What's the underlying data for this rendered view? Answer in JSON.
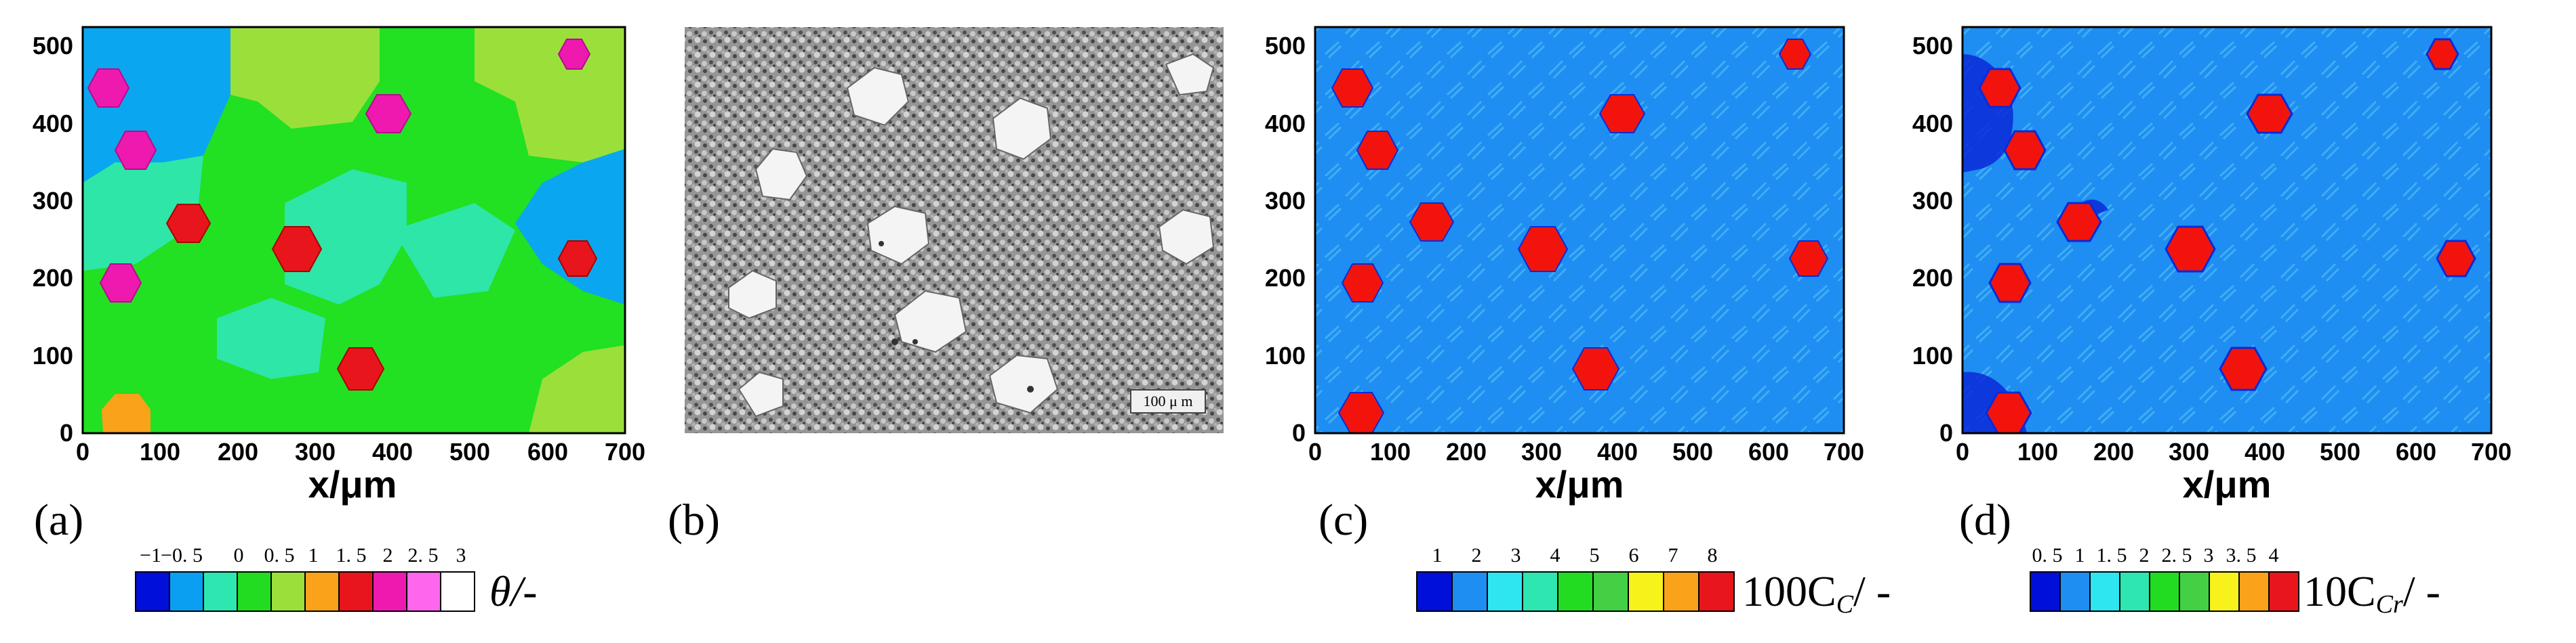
{
  "colors": {
    "a_cyan": "#0aa6f0",
    "a_lime": "#9be03a",
    "a_green": "#22e022",
    "a_teal": "#2de6a8",
    "a_magenta": "#ee1ab0",
    "a_orange": "#f9a21a",
    "a_red": "#e8161c",
    "cd_blue": "#1f8ef2",
    "cd_grain": "#f2140c",
    "d_dark": "#0a2ad8"
  },
  "panels": [
    {
      "id": "a",
      "letter": "(a)",
      "xlabel": "x/μm",
      "xticks": [
        "0",
        "100",
        "200",
        "300",
        "400",
        "500",
        "600",
        "700"
      ],
      "yticks": [
        "0",
        "100",
        "200",
        "300",
        "400",
        "500"
      ],
      "legend": {
        "ticks": [
          "−1",
          "−0. 5",
          "0",
          "0. 5",
          "1",
          "1. 5",
          "2",
          "2. 5",
          "3"
        ],
        "quantity": "θ/-",
        "colors": [
          "#0010d8",
          "#0a9ff0",
          "#2ee6b0",
          "#22dc22",
          "#9be03a",
          "#f9a21a",
          "#e8161c",
          "#ee1ab0",
          "#ff66ee",
          "#ffffff"
        ]
      }
    },
    {
      "id": "b",
      "letter": "(b)",
      "scalebar": "100 μ m"
    },
    {
      "id": "c",
      "letter": "(c)",
      "xlabel": "x/μm",
      "xticks": [
        "0",
        "100",
        "200",
        "300",
        "400",
        "500",
        "600",
        "700"
      ],
      "yticks": [
        "0",
        "100",
        "200",
        "300",
        "400",
        "500"
      ],
      "legend": {
        "ticks": [
          "1",
          "2",
          "3",
          "4",
          "5",
          "6",
          "7",
          "8"
        ],
        "quantity": "100C",
        "subscript": "C",
        "suffix": "/ -",
        "colors": [
          "#0010d8",
          "#1f8ef2",
          "#2ee6f0",
          "#2ee6b0",
          "#22dc22",
          "#44d044",
          "#f6f21a",
          "#f9a21a",
          "#e8161c"
        ]
      }
    },
    {
      "id": "d",
      "letter": "(d)",
      "xlabel": "x/μm",
      "xticks": [
        "0",
        "100",
        "200",
        "300",
        "400",
        "500",
        "600",
        "700"
      ],
      "yticks": [
        "0",
        "100",
        "200",
        "300",
        "400",
        "500"
      ],
      "legend": {
        "ticks": [
          "0. 5",
          "1",
          "1. 5",
          "2",
          "2. 5",
          "3",
          "3. 5",
          "4"
        ],
        "quantity": "10C",
        "subscript": "Cr",
        "suffix": "/ -",
        "colors": [
          "#0010d8",
          "#1f8ef2",
          "#2ee6f0",
          "#2ee6b0",
          "#22dc22",
          "#44d044",
          "#f6f21a",
          "#f9a21a",
          "#e8161c"
        ]
      }
    }
  ]
}
